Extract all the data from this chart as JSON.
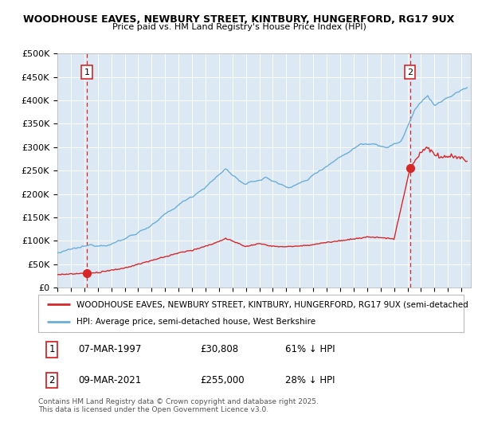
{
  "title1": "WOODHOUSE EAVES, NEWBURY STREET, KINTBURY, HUNGERFORD, RG17 9UX",
  "title2": "Price paid vs. HM Land Registry's House Price Index (HPI)",
  "sale1_year": 1997.18,
  "sale1_price": 30808,
  "sale2_year": 2021.18,
  "sale2_price": 255000,
  "hpi_label": "HPI: Average price, semi-detached house, West Berkshire",
  "price_label": "WOODHOUSE EAVES, NEWBURY STREET, KINTBURY, HUNGERFORD, RG17 9UX (semi-detached",
  "footer": "Contains HM Land Registry data © Crown copyright and database right 2025.\nThis data is licensed under the Open Government Licence v3.0.",
  "hpi_color": "#6baed6",
  "price_color": "#d62728",
  "bg_color": "#dce9f5",
  "grid_color": "#ffffff",
  "ylim": [
    0,
    500000
  ],
  "xlim_start": 1995.0,
  "xlim_end": 2025.7,
  "anno1_date": "07-MAR-1997",
  "anno1_price": "£30,808",
  "anno1_hpi": "61% ↓ HPI",
  "anno2_date": "09-MAR-2021",
  "anno2_price": "£255,000",
  "anno2_hpi": "28% ↓ HPI"
}
